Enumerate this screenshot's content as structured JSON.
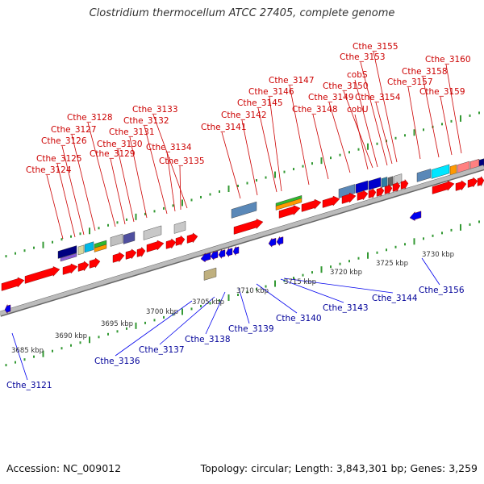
{
  "title": "Clostridium thermocellum ATCC 27405, complete genome",
  "footer": {
    "accession": "Accession: NC_009012",
    "topology": "Topology: circular; Length: 3,843,301 bp; Genes: 3,259"
  },
  "colors": {
    "forward_gene": "#ff0000",
    "reverse_gene": "#0000ee",
    "forward_label": "#cc0000",
    "reverse_label": "#000099",
    "backbone": "#999999",
    "tick": "#339933"
  },
  "scale_ticks": [
    "3685 kbp",
    "3690 kbp",
    "3695 kbp",
    "3700 kbp",
    "3705 kbp",
    "3710 kbp",
    "3715 kbp",
    "3720 kbp",
    "3725 kbp",
    "3730 kbp"
  ],
  "forward_genes": [
    "Cthe_3124",
    "Cthe_3125",
    "Cthe_3126",
    "Cthe_3127",
    "Cthe_3128",
    "Cthe_3129",
    "Cthe_3130",
    "Cthe_3131",
    "Cthe_3132",
    "Cthe_3133",
    "Cthe_3134",
    "Cthe_3135",
    "Cthe_3141",
    "Cthe_3142",
    "Cthe_3145",
    "Cthe_3146",
    "Cthe_3147",
    "Cthe_3148",
    "Cthe_3149",
    "cobU",
    "Cthe_3150",
    "cobS",
    "Cthe_3153",
    "Cthe_3154",
    "Cthe_3155",
    "Cthe_3157",
    "Cthe_3158",
    "Cthe_3159",
    "Cthe_3160"
  ],
  "reverse_genes": [
    "Cthe_3121",
    "Cthe_3136",
    "Cthe_3137",
    "Cthe_3138",
    "Cthe_3139",
    "Cthe_3140",
    "Cthe_3143",
    "Cthe_3144",
    "Cthe_3156"
  ]
}
